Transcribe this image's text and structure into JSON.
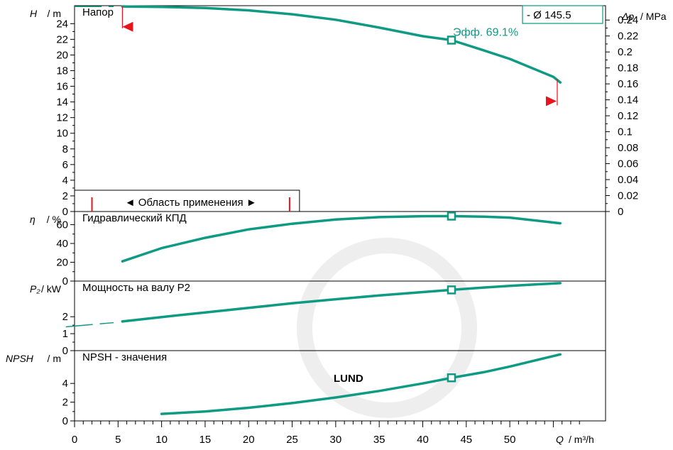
{
  "chart_data": {
    "type": "line",
    "watermark": "LUND",
    "x_axis": {
      "label_var": "Q",
      "label_unit": "/ m³/h",
      "ticks": [
        0,
        5,
        10,
        15,
        20,
        25,
        30,
        35,
        40,
        45,
        50
      ],
      "range": [
        0,
        61
      ]
    },
    "curve_label": "- Ø 145.5",
    "panels": [
      {
        "title": "Напор",
        "y_var": "H",
        "y_unit": "/ m",
        "y_ticks": [
          0,
          2,
          4,
          6,
          8,
          10,
          12,
          14,
          16,
          18,
          20,
          22,
          24
        ],
        "y_range": [
          0,
          26.3
        ],
        "right_axis": {
          "var": "Δp",
          "unit": "/ MPa",
          "ticks": [
            "0",
            "0.02",
            "0.04",
            "0.06",
            "0.08",
            "0.1",
            "0.12",
            "0.14",
            "0.16",
            "0.18",
            "0.2",
            "0.22",
            "0.24"
          ],
          "range": [
            0,
            0.258
          ]
        },
        "series": {
          "x": [
            5.5,
            10,
            15,
            20,
            25,
            30,
            35,
            40,
            43.3,
            47,
            50,
            55,
            55.8
          ],
          "y": [
            26.2,
            26.15,
            26.0,
            25.7,
            25.2,
            24.5,
            23.5,
            22.4,
            21.9,
            20.6,
            19.5,
            17.2,
            16.5
          ]
        },
        "dashed_extension": {
          "x": [
            0,
            4.5
          ],
          "y": [
            26.2,
            26.2
          ]
        },
        "operating_point": {
          "x": 43.3,
          "y": 21.9,
          "label": "Эфф.  69.1%"
        },
        "range_markers": {
          "left_x": 5.5,
          "right_x": 54.8,
          "left_y": 23.6,
          "right_y": 14.1
        },
        "application_range": {
          "label": "◄ Область применения ►",
          "x_from": 2,
          "x_to": 24.7
        }
      },
      {
        "title": "Гидравлический КПД",
        "y_var": "η",
        "y_unit": "/ %",
        "y_ticks": [
          0,
          20,
          40,
          60
        ],
        "y_range": [
          0,
          74
        ],
        "series": {
          "x": [
            5.5,
            10,
            15,
            20,
            25,
            30,
            35,
            40,
            43.3,
            47,
            50,
            55.8
          ],
          "y": [
            21,
            35,
            46,
            55,
            61,
            65.5,
            68,
            69,
            69.1,
            68.5,
            67.5,
            61.5
          ]
        },
        "operating_point": {
          "x": 43.3,
          "y": 69.1
        }
      },
      {
        "title": "Мощность на валу P2",
        "y_var": "P₂",
        "y_unit": "/ kW",
        "y_ticks": [
          0,
          1,
          2
        ],
        "y_range": [
          0,
          4.1
        ],
        "series": {
          "x": [
            5.5,
            10,
            15,
            20,
            25,
            30,
            35,
            40,
            43.3,
            47,
            50,
            55.8
          ],
          "y": [
            1.72,
            1.98,
            2.25,
            2.52,
            2.79,
            3.03,
            3.25,
            3.45,
            3.58,
            3.72,
            3.82,
            3.98
          ]
        },
        "dashed_extension": {
          "x": [
            -1,
            4.5
          ],
          "y": [
            1.4,
            1.65
          ]
        },
        "operating_point": {
          "x": 43.3,
          "y": 3.58
        }
      },
      {
        "title": "NPSH - значения",
        "y_var": "NPSH",
        "y_unit": "/ m",
        "y_ticks": [
          0,
          2,
          4
        ],
        "y_range": [
          0,
          7.5
        ],
        "series": {
          "x": [
            10,
            15,
            20,
            25,
            30,
            35,
            40,
            43.3,
            47,
            50,
            55.8
          ],
          "y": [
            0.75,
            1.0,
            1.4,
            1.9,
            2.5,
            3.2,
            4.0,
            4.6,
            5.2,
            5.8,
            7.1
          ]
        },
        "operating_point": {
          "x": 43.3,
          "y": 4.6
        }
      }
    ]
  }
}
